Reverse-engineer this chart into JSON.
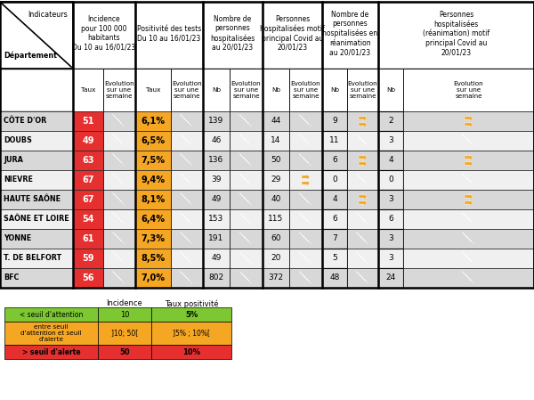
{
  "departments": [
    "CÔTE D'OR",
    "DOUBS",
    "JURA",
    "NIEVRE",
    "HAUTE SAÔNE",
    "SAÔNE ET LOIRE",
    "YONNE",
    "T. DE BELFORT",
    "BFC"
  ],
  "incidence_taux": [
    51,
    49,
    63,
    67,
    67,
    54,
    61,
    59,
    56
  ],
  "positivite_taux": [
    "6,1%",
    "6,5%",
    "7,5%",
    "9,4%",
    "8,1%",
    "6,4%",
    "7,3%",
    "8,5%",
    "7,0%"
  ],
  "hosp_nb": [
    139,
    46,
    136,
    39,
    49,
    153,
    191,
    49,
    802
  ],
  "hosp_covid_nb": [
    44,
    14,
    50,
    29,
    40,
    115,
    60,
    20,
    372
  ],
  "rea_nb": [
    9,
    11,
    6,
    0,
    4,
    6,
    7,
    5,
    48
  ],
  "rea_covid_nb": [
    2,
    3,
    4,
    0,
    3,
    6,
    3,
    3,
    24
  ],
  "inc_arr": [
    "g",
    "g",
    "g",
    "g",
    "g",
    "g",
    "g",
    "g",
    "g"
  ],
  "pos_arr": [
    "g",
    "g",
    "g",
    "g",
    "g",
    "g",
    "g",
    "g",
    "g"
  ],
  "hosp_arr": [
    "g",
    "g",
    "g",
    "g",
    "g",
    "g",
    "g",
    "g",
    "g"
  ],
  "hcov_arr": [
    "g",
    "g",
    "g",
    "o",
    "g",
    "g",
    "g",
    "g",
    "g"
  ],
  "rea_arr": [
    "o",
    "g",
    "o",
    "g",
    "o",
    "g",
    "g",
    "g",
    "g"
  ],
  "rcov_arr": [
    "o",
    "g",
    "o",
    "g",
    "o",
    "g",
    "g",
    "g",
    "g"
  ],
  "RED": "#e63030",
  "YELLOW": "#f5a623",
  "GREEN_ARROW": "#7dc832",
  "ORANGE_ARROW": "#f5a623",
  "row_bg_light": "#f0f0f0",
  "row_bg_dark": "#d8d8d8",
  "WHITE": "#ffffff",
  "group_headers": [
    "Incidence\npour 100 000\nhabitants\nDu 10 au 16/01/23",
    "Positivité des tests\nDu 10 au 16/01/23",
    "Nombre de\npersonnes\nhospitalisées\nau 20/01/23",
    "Personnes\nhospitalisées motif\nprincipal Covid au\n20/01/23",
    "Nombre de\npersonnes\nhospitalisées en\nréanimation\nau 20/01/23",
    "Personnes\nhospitalisées\n(réanimation) motif\nprincipal Covid au\n20/01/23"
  ],
  "legend_col1_label": "Incidence",
  "legend_col2_label": "Taux positivité",
  "leg_green_text": "< seuil d'attention",
  "leg_yellow_text": "entre seuil\nd'attention et seuil\nd'alerte",
  "leg_red_text": "> seuil d'alerte",
  "leg_green_inc": "10",
  "leg_yellow_inc": "]10; 50[",
  "leg_red_inc": "50",
  "leg_green_taux": "5%",
  "leg_yellow_taux": "]5% ; 10%[",
  "leg_red_taux": "10%"
}
